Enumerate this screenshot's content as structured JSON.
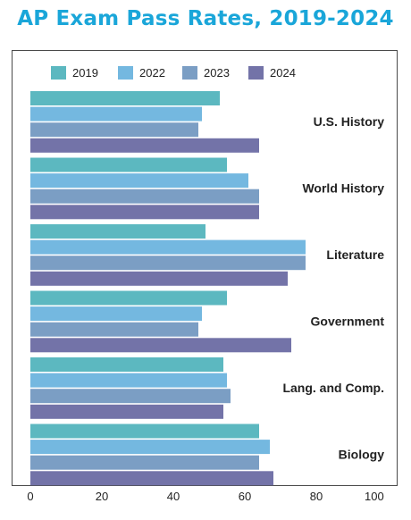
{
  "chart_data": {
    "type": "bar",
    "orientation": "horizontal",
    "title": "AP Exam Pass Rates, 2019-2024",
    "categories": [
      "U.S. History",
      "World History",
      "Literature",
      "Government",
      "Lang. and Comp.",
      "Biology"
    ],
    "series": [
      {
        "name": "2019",
        "color": "#5cb8c0",
        "values": [
          53,
          55,
          49,
          55,
          54,
          64
        ]
      },
      {
        "name": "2022",
        "color": "#74b8e0",
        "values": [
          48,
          61,
          77,
          48,
          55,
          67
        ]
      },
      {
        "name": "2023",
        "color": "#7b9ec4",
        "values": [
          47,
          64,
          77,
          47,
          56,
          64
        ]
      },
      {
        "name": "2024",
        "color": "#7373a8",
        "values": [
          64,
          64,
          72,
          73,
          54,
          68
        ]
      }
    ],
    "xlim": [
      0,
      100
    ],
    "xticks": [
      0,
      20,
      40,
      60,
      80,
      100
    ],
    "grid": false,
    "legend_position": "top"
  }
}
